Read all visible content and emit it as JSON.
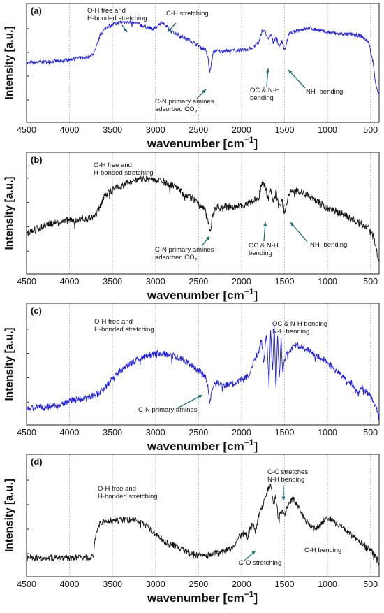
{
  "chart_data": [
    {
      "type": "line",
      "panel_label": "(a)",
      "xlabel": "wavenumber [cm",
      "xlabel_sup": "−1",
      "xlabel_end": "]",
      "ylabel": "Intensity [a.u.]",
      "xlim": [
        4500,
        400
      ],
      "x_reversed": true,
      "ylim": [
        0,
        1
      ],
      "xticks": [
        "4500",
        "4000",
        "3500",
        "3000",
        "2500",
        "2000",
        "1500",
        "1000",
        "500"
      ],
      "grid": "vertical-dotted",
      "color": "#1a1ae6",
      "noise": 0.018,
      "series": [
        {
          "x": [
            4500,
            4300,
            4100,
            3950,
            3850,
            3760,
            3700,
            3640,
            3560,
            3480,
            3400,
            3300,
            3200,
            3100,
            3020,
            2960,
            2920,
            2880,
            2840,
            2800,
            2700,
            2600,
            2500,
            2420,
            2390,
            2370,
            2350,
            2330,
            2300,
            2250,
            2150,
            2050,
            1950,
            1870,
            1800,
            1760,
            1720,
            1690,
            1660,
            1630,
            1600,
            1560,
            1530,
            1500,
            1450,
            1400,
            1300,
            1200,
            1100,
            1000,
            900,
            800,
            700,
            600,
            520,
            470,
            440,
            410
          ],
          "y": [
            0.5,
            0.51,
            0.52,
            0.54,
            0.55,
            0.56,
            0.62,
            0.78,
            0.86,
            0.88,
            0.9,
            0.9,
            0.88,
            0.85,
            0.83,
            0.88,
            0.9,
            0.86,
            0.83,
            0.8,
            0.76,
            0.72,
            0.67,
            0.63,
            0.55,
            0.4,
            0.5,
            0.6,
            0.62,
            0.61,
            0.62,
            0.62,
            0.63,
            0.65,
            0.7,
            0.82,
            0.8,
            0.72,
            0.78,
            0.7,
            0.76,
            0.66,
            0.72,
            0.62,
            0.78,
            0.8,
            0.83,
            0.84,
            0.82,
            0.8,
            0.79,
            0.78,
            0.78,
            0.76,
            0.7,
            0.5,
            0.3,
            0.2
          ]
        }
      ],
      "annotations": [
        {
          "lines": [
            "O-H free and",
            "H-bonded stretching"
          ]
        },
        {
          "lines": [
            "C-H stretching"
          ]
        },
        {
          "lines": [
            "C-N primary amines",
            "adsorbed CO|2"
          ]
        },
        {
          "lines": [
            "OC & N-H",
            "bending"
          ]
        },
        {
          "lines": [
            "NH- bending"
          ]
        }
      ]
    },
    {
      "type": "line",
      "panel_label": "(b)",
      "xlabel": "wavenumber [cm",
      "xlabel_sup": "−1",
      "xlabel_end": "]",
      "ylabel": "Intensity [a.u.]",
      "xlim": [
        4500,
        400
      ],
      "x_reversed": true,
      "ylim": [
        0,
        1
      ],
      "xticks": [
        "4500",
        "4000",
        "3500",
        "3000",
        "2500",
        "2000",
        "1500",
        "1000",
        "500"
      ],
      "grid": "vertical-dotted",
      "color": "#111111",
      "noise": 0.035,
      "series": [
        {
          "x": [
            4500,
            4400,
            4300,
            4200,
            4100,
            4000,
            3900,
            3800,
            3750,
            3700,
            3650,
            3600,
            3500,
            3400,
            3300,
            3200,
            3100,
            3000,
            2900,
            2800,
            2700,
            2600,
            2500,
            2420,
            2390,
            2370,
            2350,
            2330,
            2300,
            2200,
            2100,
            2000,
            1900,
            1800,
            1760,
            1720,
            1690,
            1660,
            1630,
            1600,
            1560,
            1530,
            1500,
            1450,
            1400,
            1300,
            1200,
            1100,
            1000,
            900,
            800,
            700,
            600,
            520,
            470,
            430,
            410
          ],
          "y": [
            0.32,
            0.34,
            0.38,
            0.4,
            0.41,
            0.43,
            0.44,
            0.45,
            0.46,
            0.48,
            0.56,
            0.66,
            0.72,
            0.76,
            0.8,
            0.82,
            0.83,
            0.82,
            0.8,
            0.76,
            0.7,
            0.65,
            0.6,
            0.55,
            0.45,
            0.3,
            0.4,
            0.5,
            0.55,
            0.56,
            0.56,
            0.57,
            0.6,
            0.65,
            0.8,
            0.75,
            0.62,
            0.74,
            0.6,
            0.7,
            0.55,
            0.62,
            0.5,
            0.68,
            0.72,
            0.7,
            0.66,
            0.6,
            0.55,
            0.52,
            0.48,
            0.44,
            0.4,
            0.35,
            0.28,
            0.15,
            0.05
          ]
        }
      ],
      "annotations": [
        {
          "lines": [
            "O-H free and",
            "H-bonded stretching"
          ]
        },
        {
          "lines": [
            "C-N primary amines",
            "adsorbed CO|2"
          ]
        },
        {
          "lines": [
            "OC & N-H",
            "bending"
          ]
        },
        {
          "lines": [
            "NH- bending"
          ]
        }
      ]
    },
    {
      "type": "line",
      "panel_label": "(c)",
      "xlabel": "wavenumber [cm",
      "xlabel_sup": "−1",
      "xlabel_end": "]",
      "ylabel": "Intensity [a.u.]",
      "xlim": [
        4500,
        400
      ],
      "x_reversed": true,
      "ylim": [
        0,
        1
      ],
      "xticks": [
        "4500",
        "4000",
        "3500",
        "3000",
        "2500",
        "2000",
        "1500",
        "1000",
        "500"
      ],
      "grid": "vertical-dotted",
      "color": "#1a1ae6",
      "noise": 0.03,
      "series": [
        {
          "x": [
            4500,
            4300,
            4150,
            4050,
            4000,
            3900,
            3800,
            3700,
            3600,
            3500,
            3400,
            3300,
            3200,
            3100,
            3000,
            2900,
            2800,
            2700,
            2600,
            2500,
            2420,
            2390,
            2370,
            2350,
            2330,
            2300,
            2200,
            2100,
            2000,
            1900,
            1850,
            1800,
            1770,
            1740,
            1710,
            1680,
            1660,
            1640,
            1620,
            1600,
            1580,
            1560,
            1540,
            1520,
            1500,
            1450,
            1400,
            1350,
            1300,
            1200,
            1100,
            1000,
            900,
            800,
            700,
            640,
            600,
            500,
            450,
            420,
            410
          ],
          "y": [
            0.08,
            0.09,
            0.1,
            0.13,
            0.15,
            0.16,
            0.18,
            0.2,
            0.26,
            0.36,
            0.44,
            0.5,
            0.55,
            0.58,
            0.6,
            0.6,
            0.58,
            0.55,
            0.5,
            0.44,
            0.38,
            0.28,
            0.12,
            0.24,
            0.3,
            0.32,
            0.3,
            0.31,
            0.35,
            0.4,
            0.55,
            0.62,
            0.75,
            0.5,
            0.8,
            0.3,
            0.85,
            0.4,
            0.88,
            0.25,
            0.8,
            0.35,
            0.75,
            0.4,
            0.55,
            0.62,
            0.66,
            0.68,
            0.66,
            0.62,
            0.57,
            0.52,
            0.44,
            0.36,
            0.3,
            0.2,
            0.28,
            0.2,
            0.12,
            0.05,
            0.02
          ]
        }
      ],
      "annotations": [
        {
          "lines": [
            "O-H free and",
            "H-bonded stretching"
          ]
        },
        {
          "lines": [
            "OC & N-H bending",
            "N-H bending"
          ]
        },
        {
          "lines": [
            "C-N primary amines"
          ]
        }
      ]
    },
    {
      "type": "line",
      "panel_label": "(d)",
      "xlabel": "wavenumber [cm",
      "xlabel_sup": "−1",
      "xlabel_end": "]",
      "ylabel": "Intensity [a.u.]",
      "xlim": [
        4500,
        400
      ],
      "x_reversed": true,
      "ylim": [
        0,
        1
      ],
      "xticks": [
        "4500",
        "4000",
        "3500",
        "3000",
        "2500",
        "2000",
        "1500",
        "1000",
        "500"
      ],
      "grid": "vertical-dotted",
      "color": "#111111",
      "noise": 0.03,
      "series": [
        {
          "x": [
            4500,
            4200,
            4000,
            3850,
            3760,
            3720,
            3700,
            3650,
            3600,
            3500,
            3400,
            3300,
            3200,
            3100,
            3000,
            2900,
            2800,
            2700,
            2600,
            2500,
            2400,
            2300,
            2200,
            2100,
            2050,
            2000,
            1960,
            1930,
            1900,
            1870,
            1840,
            1800,
            1750,
            1700,
            1660,
            1630,
            1600,
            1570,
            1540,
            1500,
            1450,
            1400,
            1350,
            1300,
            1250,
            1200,
            1150,
            1100,
            1050,
            1000,
            950,
            900,
            850,
            800,
            700,
            600,
            500,
            450,
            420,
            410
          ],
          "y": [
            0.1,
            0.1,
            0.1,
            0.1,
            0.1,
            0.12,
            0.3,
            0.42,
            0.44,
            0.46,
            0.46,
            0.46,
            0.45,
            0.4,
            0.32,
            0.26,
            0.22,
            0.18,
            0.14,
            0.12,
            0.12,
            0.14,
            0.16,
            0.2,
            0.26,
            0.32,
            0.34,
            0.3,
            0.38,
            0.42,
            0.35,
            0.5,
            0.6,
            0.75,
            0.8,
            0.6,
            0.68,
            0.45,
            0.55,
            0.5,
            0.62,
            0.66,
            0.6,
            0.52,
            0.45,
            0.4,
            0.38,
            0.4,
            0.45,
            0.48,
            0.46,
            0.42,
            0.4,
            0.36,
            0.3,
            0.24,
            0.18,
            0.12,
            0.08,
            0.05
          ]
        }
      ],
      "annotations": [
        {
          "lines": [
            "O-H free and",
            "H-bonded stretching"
          ]
        },
        {
          "lines": [
            "C-C stretches",
            "N-H bending"
          ]
        },
        {
          "lines": [
            "C-O stretching"
          ]
        },
        {
          "lines": [
            "C-H bending"
          ]
        }
      ]
    }
  ]
}
